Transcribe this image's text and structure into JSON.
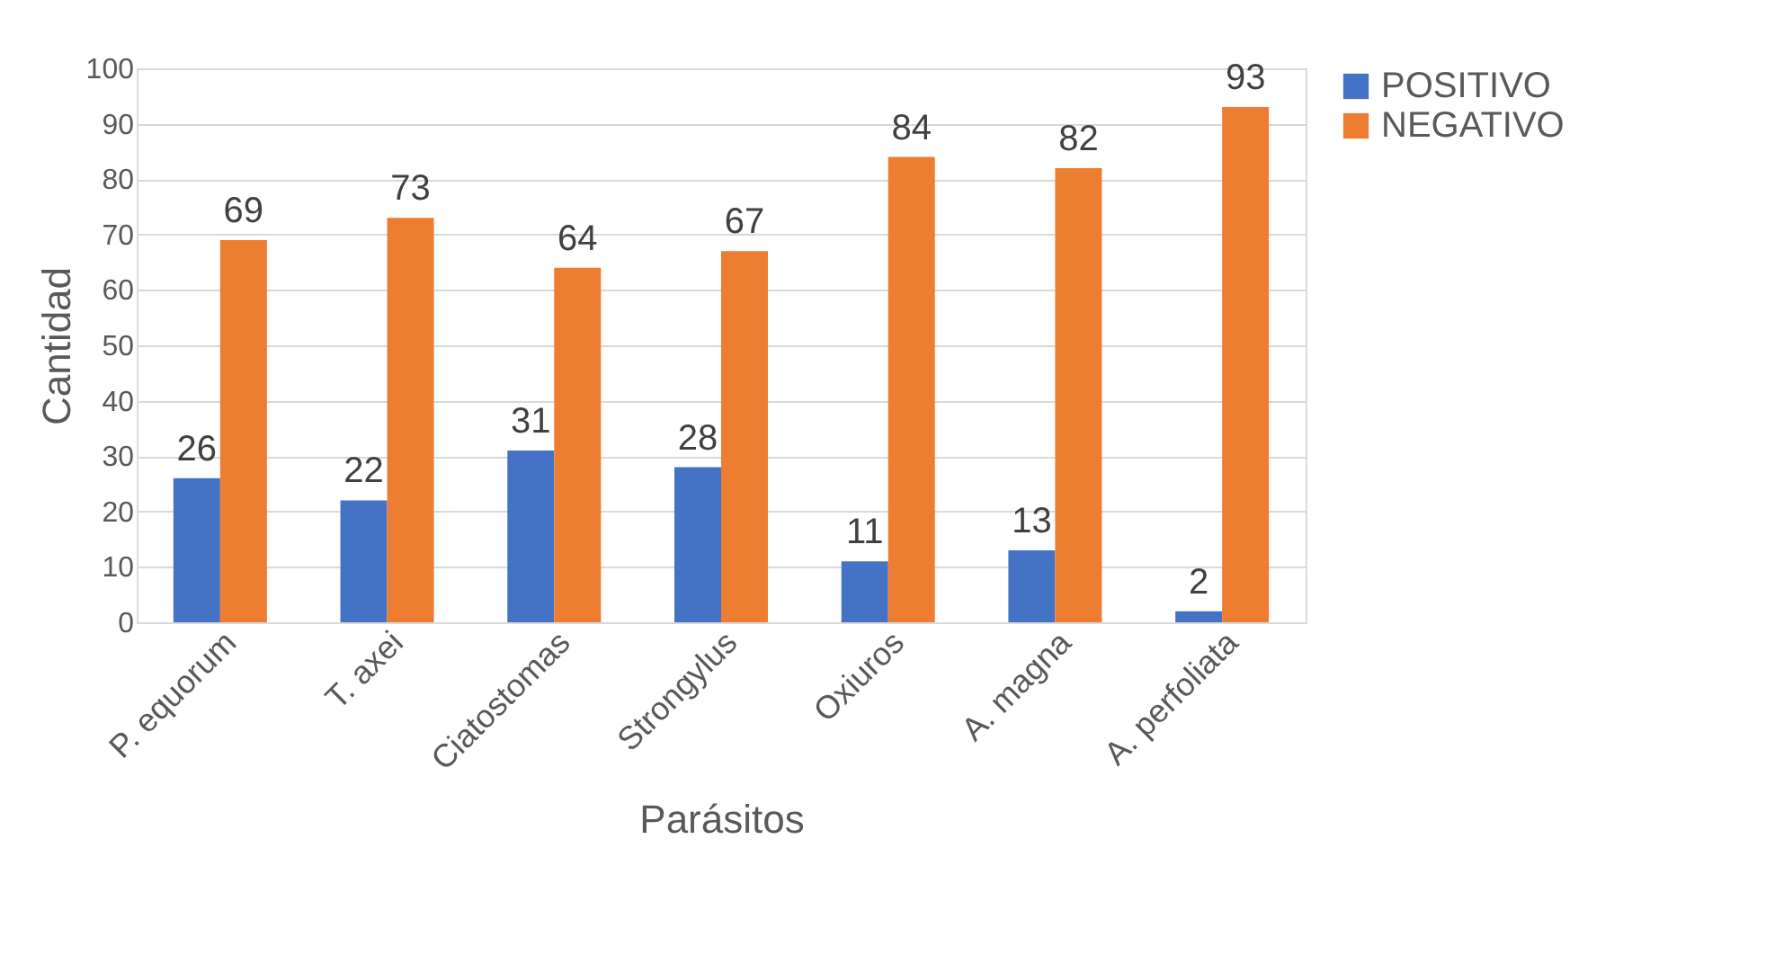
{
  "chart_data": {
    "type": "bar",
    "xlabel": "Parásitos",
    "ylabel": "Cantidad",
    "categories": [
      "P. equorum",
      "T. axei",
      "Ciatostomas",
      "Strongylus",
      "Oxiuros",
      "A. magna",
      "A. perfoliata"
    ],
    "series": [
      {
        "name": "POSITIVO",
        "color": "#4472c4",
        "values": [
          26,
          22,
          31,
          28,
          11,
          13,
          2
        ]
      },
      {
        "name": "NEGATIVO",
        "color": "#ed7d31",
        "values": [
          69,
          73,
          64,
          67,
          84,
          82,
          93
        ]
      }
    ],
    "ylim": [
      0,
      100
    ],
    "yticks": [
      0,
      10,
      20,
      30,
      40,
      50,
      60,
      70,
      80,
      90,
      100
    ],
    "grid": "y",
    "legend": "right",
    "data_labels": true
  }
}
